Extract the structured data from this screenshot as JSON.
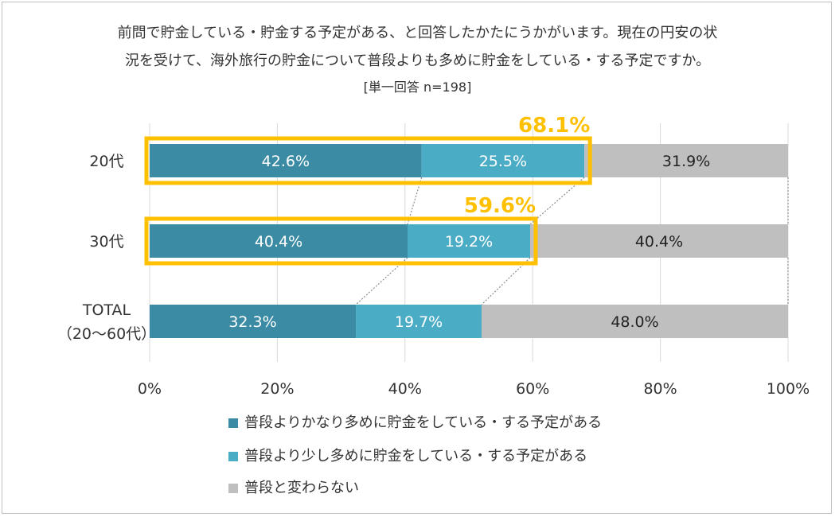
{
  "title_lines": [
    "前問で貯金している・貯金する予定がある、と回答したかたにうかがいます。現在の円安の状",
    "況を受けて、海外旅行の貯金について普段よりも多めに貯金をしている・する予定ですか。",
    "[単一回答 n=198]"
  ],
  "colors": {
    "series1": "#3a8ba3",
    "series2": "#4bacc6",
    "series3": "#bfbfbf",
    "highlight": "#ffc000",
    "grid": "#d9d9d9"
  },
  "chart_data": {
    "type": "bar",
    "orientation": "horizontal",
    "stacked": true,
    "categories": [
      [
        "20代"
      ],
      [
        "30代"
      ],
      [
        "TOTAL",
        "（20～60代）"
      ]
    ],
    "series": [
      {
        "name": "普段よりかなり多めに貯金をしている・する予定がある",
        "values": [
          42.6,
          40.4,
          32.3
        ]
      },
      {
        "name": "普段より少し多めに貯金をしている・する予定がある",
        "values": [
          25.5,
          19.2,
          19.7
        ]
      },
      {
        "name": "普段と変わらない",
        "values": [
          31.9,
          40.4,
          48.0
        ]
      }
    ],
    "value_labels": [
      [
        "42.6%",
        "40.4%",
        "32.3%"
      ],
      [
        "25.5%",
        "19.2%",
        "19.7%"
      ],
      [
        "31.9%",
        "40.4%",
        "48.0%"
      ]
    ],
    "highlights": [
      {
        "category_index": 0,
        "value": 68.1,
        "label": "68.1%"
      },
      {
        "category_index": 1,
        "value": 59.6,
        "label": "59.6%"
      }
    ],
    "xlim": [
      0,
      100
    ],
    "x_ticks": [
      0,
      20,
      40,
      60,
      80,
      100
    ],
    "x_tick_labels": [
      "0%",
      "20%",
      "40%",
      "60%",
      "80%",
      "100%"
    ],
    "grid": true,
    "series_connector_lines": true,
    "legend_position": "bottom"
  }
}
